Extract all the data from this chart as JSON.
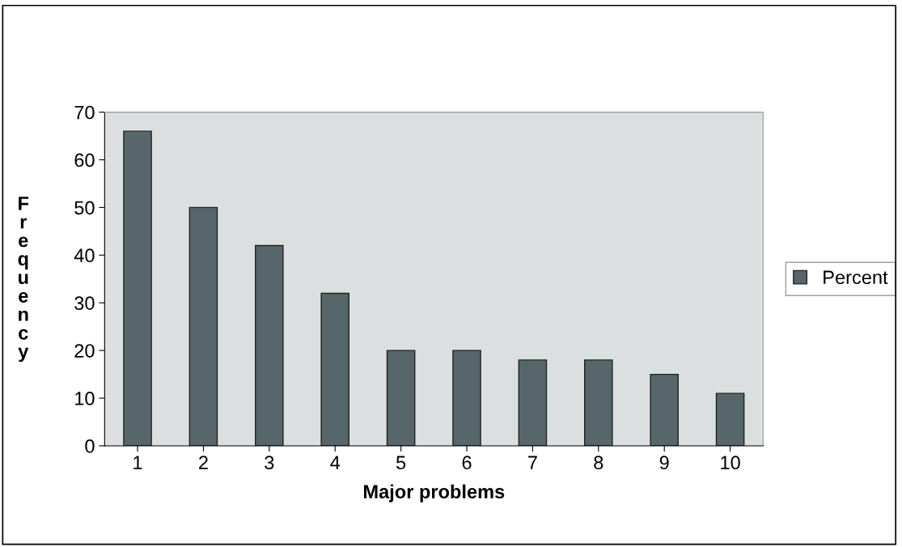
{
  "chart_data": {
    "type": "bar",
    "xlabel": "Major problems",
    "ylabel": "Frequency",
    "categories": [
      "1",
      "2",
      "3",
      "4",
      "5",
      "6",
      "7",
      "8",
      "9",
      "10"
    ],
    "series": [
      {
        "name": "Percent",
        "color": "#56666a",
        "values": [
          66,
          50,
          42,
          32,
          20,
          20,
          18,
          18,
          15,
          11
        ]
      }
    ],
    "ylim": [
      0,
      70
    ],
    "yticks": [
      0,
      10,
      20,
      30,
      40,
      50,
      60,
      70
    ],
    "grid": false,
    "legend": "right"
  }
}
